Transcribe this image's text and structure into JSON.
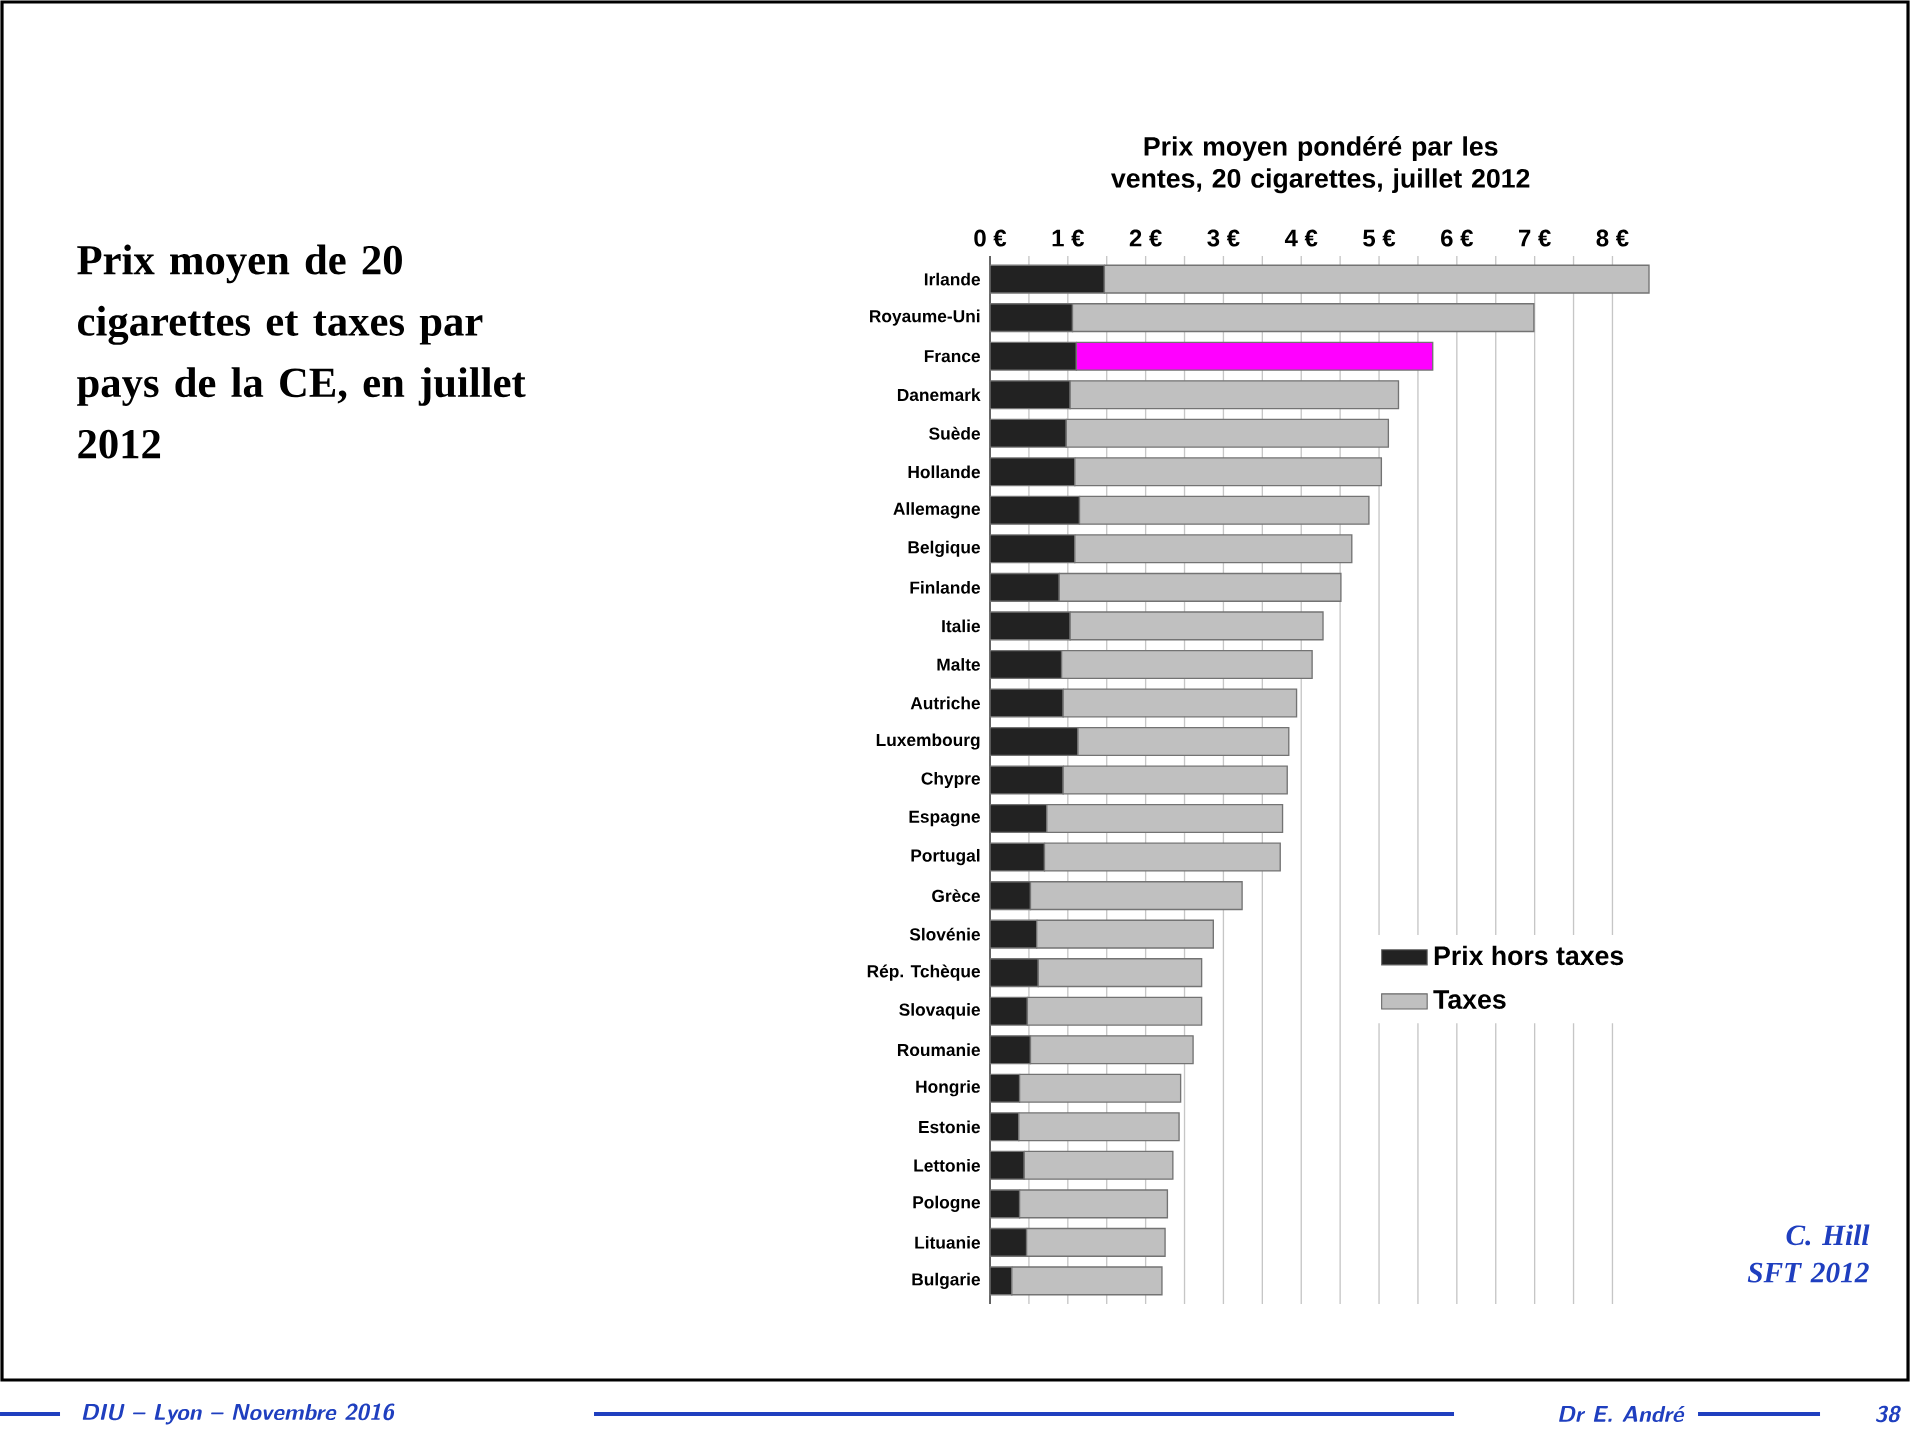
{
  "chart_data": {
    "type": "bar",
    "orientation": "horizontal",
    "stacked": true,
    "title": "Prix moyen pondéré par les ventes, 20 cigarettes, juillet 2012",
    "categories": [
      "Irlande",
      "Royaume-Uni",
      "France",
      "Danemark",
      "Suède",
      "Hollande",
      "Allemagne",
      "Belgique",
      "Finlande",
      "Italie",
      "Malte",
      "Autriche",
      "Luxembourg",
      "Chypre",
      "Espagne",
      "Portugal",
      "Grèce",
      "Slovénie",
      "Rép. Tchèque",
      "Slovaquie",
      "Roumanie",
      "Hongrie",
      "Estonie",
      "Lettonie",
      "Pologne",
      "Lituanie",
      "Bulgarie"
    ],
    "series": [
      {
        "name": "Prix hors taxes",
        "color": "#222222",
        "values": [
          1.47,
          1.06,
          1.11,
          1.03,
          0.98,
          1.09,
          1.15,
          1.09,
          0.89,
          1.03,
          0.92,
          0.94,
          1.13,
          0.94,
          0.73,
          0.7,
          0.52,
          0.6,
          0.62,
          0.48,
          0.52,
          0.38,
          0.37,
          0.44,
          0.38,
          0.47,
          0.28
        ]
      },
      {
        "name": "Taxes",
        "color": "#c0c0c0",
        "colors": [
          "#c0c0c0",
          "#c0c0c0",
          "#ff00ff",
          "#c0c0c0",
          "#c0c0c0",
          "#c0c0c0",
          "#c0c0c0",
          "#c0c0c0",
          "#c0c0c0",
          "#c0c0c0",
          "#c0c0c0",
          "#c0c0c0",
          "#c0c0c0",
          "#c0c0c0",
          "#c0c0c0",
          "#c0c0c0",
          "#c0c0c0",
          "#c0c0c0",
          "#c0c0c0",
          "#c0c0c0",
          "#c0c0c0",
          "#c0c0c0",
          "#c0c0c0",
          "#c0c0c0",
          "#c0c0c0",
          "#c0c0c0",
          "#c0c0c0"
        ],
        "values": [
          7.0,
          5.93,
          4.58,
          4.22,
          4.14,
          3.94,
          3.72,
          3.56,
          3.62,
          3.25,
          3.22,
          3.0,
          2.71,
          2.88,
          3.03,
          3.03,
          2.72,
          2.27,
          2.1,
          2.24,
          2.09,
          2.07,
          2.06,
          1.91,
          1.9,
          1.78,
          1.93
        ]
      }
    ],
    "xlim": [
      0,
      8.5
    ],
    "xticks": [
      {
        "value": 0,
        "label": "0 €"
      },
      {
        "value": 0.5,
        "label": null
      },
      {
        "value": 1,
        "label": "1 €"
      },
      {
        "value": 1.5,
        "label": null
      },
      {
        "value": 2,
        "label": "2 €"
      },
      {
        "value": 2.5,
        "label": null
      },
      {
        "value": 3,
        "label": "3 €"
      },
      {
        "value": 3.5,
        "label": null
      },
      {
        "value": 4,
        "label": "4 €"
      },
      {
        "value": 4.5,
        "label": null
      },
      {
        "value": 5,
        "label": "5 €"
      },
      {
        "value": 5.5,
        "label": null
      },
      {
        "value": 6,
        "label": "6 €"
      },
      {
        "value": 6.5,
        "label": null
      },
      {
        "value": 7,
        "label": "7 €"
      },
      {
        "value": 7.5,
        "label": null
      },
      {
        "value": 8,
        "label": "8 €"
      }
    ],
    "grid": "x",
    "legend": "right",
    "annotations": [
      "Prix moyen de 20 cigarettes et taxes par pays de la CE, en juillet 2012",
      "C. Hill SFT 2012",
      "DIU – Lyon – Novembre 2016",
      "Dr E. André",
      "38"
    ]
  }
}
